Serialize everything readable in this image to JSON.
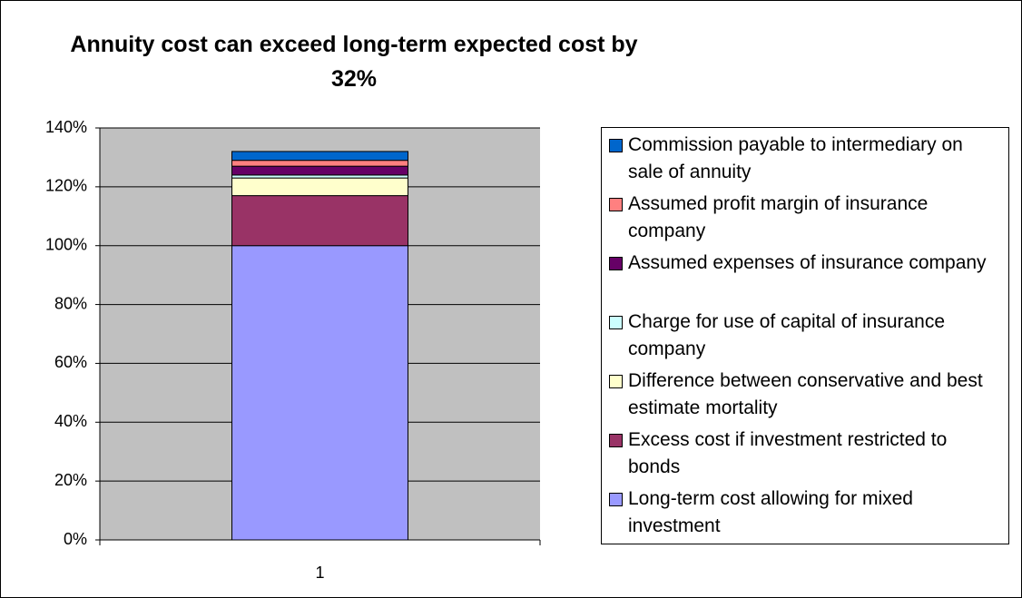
{
  "chart_data": {
    "type": "stacked_bar",
    "title": "Annuity cost can exceed long-term expected cost by 32%",
    "categories": [
      "1"
    ],
    "series": [
      {
        "name": "Long-term cost allowing for mixed investment",
        "color": "#9999ff",
        "values": [
          100
        ]
      },
      {
        "name": "Excess cost if investment restricted to bonds",
        "color": "#993366",
        "values": [
          17
        ]
      },
      {
        "name": "Difference between conservative and best estimate mortality",
        "color": "#ffffcc",
        "values": [
          6
        ]
      },
      {
        "name": "Charge for use of capital of insurance company",
        "color": "#ccffff",
        "values": [
          1
        ]
      },
      {
        "name": "Assumed expenses of insurance company",
        "color": "#660066",
        "values": [
          3
        ]
      },
      {
        "name": "Assumed profit margin of insurance company",
        "color": "#ff8080",
        "values": [
          2
        ]
      },
      {
        "name": "Commission payable to intermediary on sale of annuity",
        "color": "#0066cc",
        "values": [
          3
        ]
      }
    ],
    "ylim": [
      0,
      140
    ],
    "yticks": [
      {
        "value": 0,
        "label": "0%"
      },
      {
        "value": 20,
        "label": "20%"
      },
      {
        "value": 40,
        "label": "40%"
      },
      {
        "value": 60,
        "label": "60%"
      },
      {
        "value": 80,
        "label": "80%"
      },
      {
        "value": 100,
        "label": "100%"
      },
      {
        "value": 120,
        "label": "120%"
      },
      {
        "value": 140,
        "label": "140%"
      }
    ],
    "grid": true,
    "plot_background": "#c0c0c0",
    "legend": "right"
  }
}
